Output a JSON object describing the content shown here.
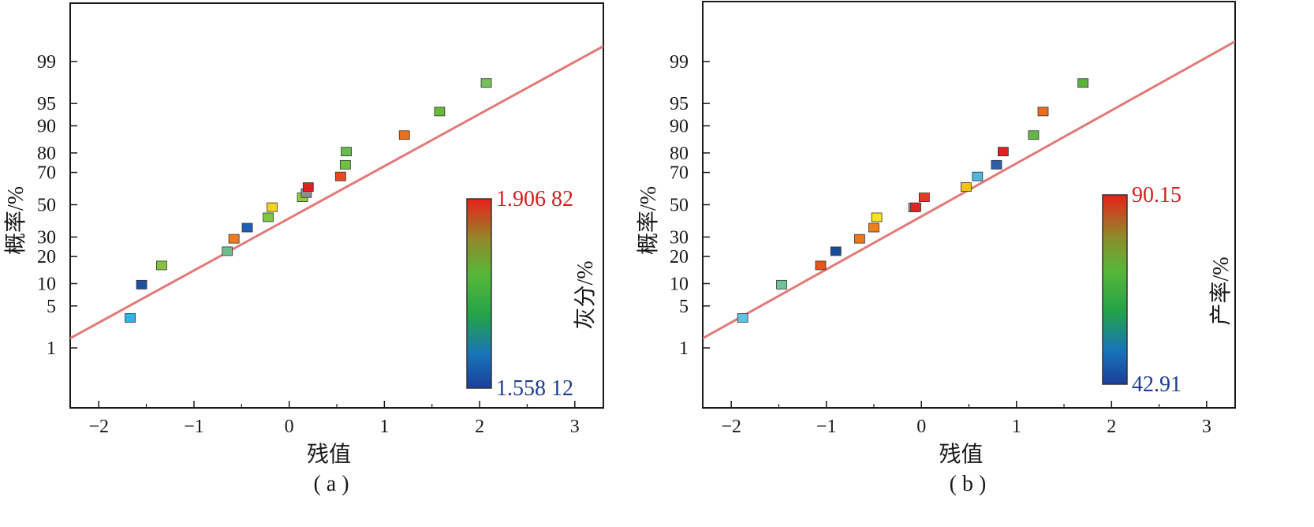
{
  "colors": {
    "fit_line": "#e27a78",
    "axis": "#1a1a1a",
    "cb_low_text": "#1e3d8f",
    "cb_high_text": "#d42020"
  },
  "chart_data": [
    {
      "type": "scatter",
      "caption": "( a )",
      "xlabel": "残值",
      "ylabel": "概率/%",
      "xlim": [
        -2.3,
        3.3
      ],
      "x_ticks": [
        -2,
        -1,
        0,
        1,
        2,
        3
      ],
      "y_scale": "normal-probability",
      "y_ticks": [
        1,
        5,
        10,
        20,
        30,
        50,
        70,
        80,
        90,
        95,
        99
      ],
      "grid": false,
      "fit_line": {
        "from": [
          -2.3,
          1.5
        ],
        "to": [
          3.3,
          99.5
        ]
      },
      "colorbar": {
        "label": "灰分/%",
        "min_label": "1.558 12",
        "max_label": "1.906 82",
        "min": 1.55812,
        "max": 1.90682
      },
      "points": [
        {
          "x": -1.67,
          "y": 3.3,
          "color": "#2bb6e8"
        },
        {
          "x": -1.55,
          "y": 9.7,
          "color": "#1f4fa3"
        },
        {
          "x": -1.34,
          "y": 16.2,
          "color": "#86c43f"
        },
        {
          "x": -0.65,
          "y": 22.5,
          "color": "#6dbf8c"
        },
        {
          "x": -0.58,
          "y": 29.0,
          "color": "#f07a1e"
        },
        {
          "x": -0.44,
          "y": 35.5,
          "color": "#1f5fb5"
        },
        {
          "x": -0.22,
          "y": 41.9,
          "color": "#7cc843"
        },
        {
          "x": -0.18,
          "y": 48.4,
          "color": "#f6d21d"
        },
        {
          "x": 0.14,
          "y": 54.8,
          "color": "#8fcd3a"
        },
        {
          "x": 0.18,
          "y": 57.5,
          "color": "#8f8f8f"
        },
        {
          "x": 0.2,
          "y": 61.3,
          "color": "#e02020"
        },
        {
          "x": 0.54,
          "y": 67.7,
          "color": "#e8481e"
        },
        {
          "x": 0.59,
          "y": 74.2,
          "color": "#70c143"
        },
        {
          "x": 0.6,
          "y": 80.6,
          "color": "#68b94e"
        },
        {
          "x": 1.21,
          "y": 87.1,
          "color": "#ee6e1a"
        },
        {
          "x": 1.58,
          "y": 93.5,
          "color": "#6ab83a"
        },
        {
          "x": 2.07,
          "y": 97.6,
          "color": "#78c05a"
        }
      ]
    },
    {
      "type": "scatter",
      "caption": "( b )",
      "xlabel": "残值",
      "ylabel": "概率/%",
      "xlim": [
        -2.3,
        3.3
      ],
      "x_ticks": [
        -2,
        -1,
        0,
        1,
        2,
        3
      ],
      "y_scale": "normal-probability",
      "y_ticks": [
        1,
        5,
        10,
        20,
        30,
        50,
        70,
        80,
        90,
        95,
        99
      ],
      "grid": false,
      "fit_line": {
        "from": [
          -2.3,
          1.5
        ],
        "to": [
          3.3,
          99.6
        ]
      },
      "colorbar": {
        "label": "产率/%",
        "min_label": "42.91",
        "max_label": "90.15",
        "min": 42.91,
        "max": 90.15
      },
      "points": [
        {
          "x": -1.88,
          "y": 3.3,
          "color": "#5ec3e3"
        },
        {
          "x": -1.47,
          "y": 9.7,
          "color": "#6fc29a"
        },
        {
          "x": -1.06,
          "y": 16.2,
          "color": "#e8541c"
        },
        {
          "x": -0.9,
          "y": 22.5,
          "color": "#1b4c9c"
        },
        {
          "x": -0.65,
          "y": 29.0,
          "color": "#ec761a"
        },
        {
          "x": -0.5,
          "y": 35.5,
          "color": "#ef7f1a"
        },
        {
          "x": -0.47,
          "y": 41.9,
          "color": "#f5e420"
        },
        {
          "x": -0.08,
          "y": 48.2,
          "color": "#9a9a9a"
        },
        {
          "x": -0.06,
          "y": 48.4,
          "color": "#e62323"
        },
        {
          "x": 0.03,
          "y": 54.8,
          "color": "#e83a20"
        },
        {
          "x": 0.47,
          "y": 61.3,
          "color": "#f6c21a"
        },
        {
          "x": 0.59,
          "y": 67.7,
          "color": "#4fb6dd"
        },
        {
          "x": 0.79,
          "y": 74.2,
          "color": "#2d60a8"
        },
        {
          "x": 0.86,
          "y": 80.6,
          "color": "#e62020"
        },
        {
          "x": 1.18,
          "y": 87.1,
          "color": "#66b84a"
        },
        {
          "x": 1.28,
          "y": 93.5,
          "color": "#ef6a1b"
        },
        {
          "x": 1.7,
          "y": 97.6,
          "color": "#5cb33a"
        }
      ]
    }
  ]
}
